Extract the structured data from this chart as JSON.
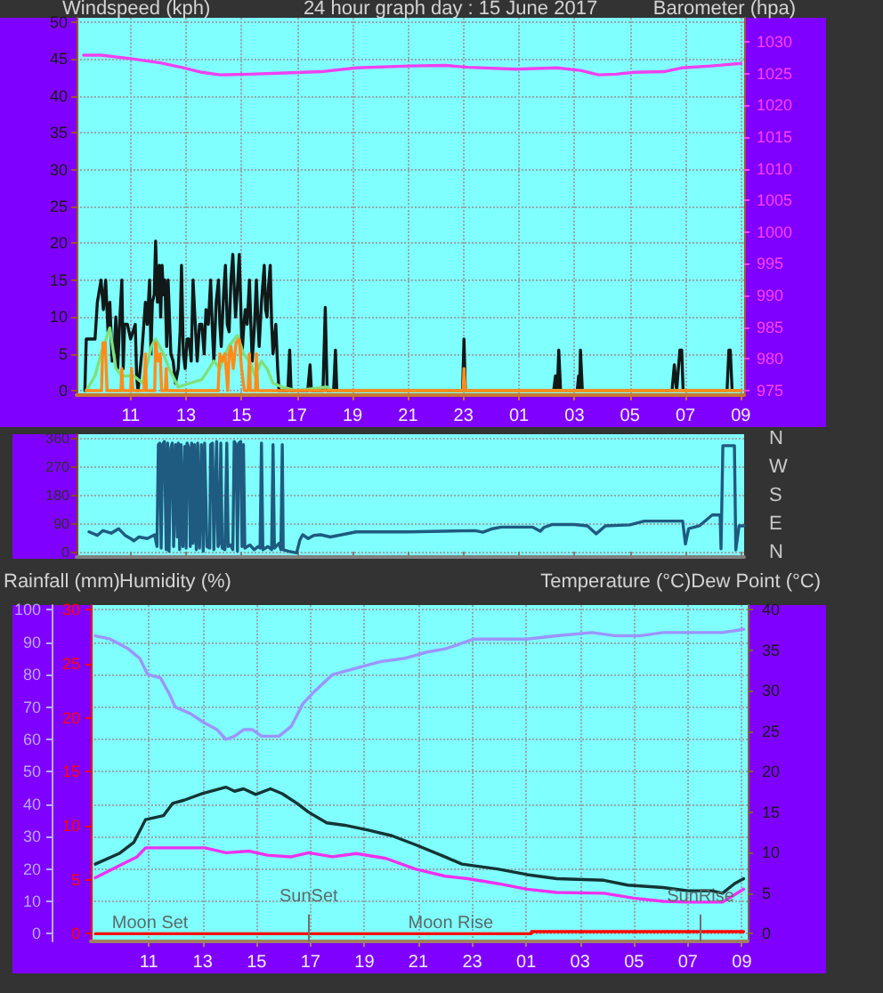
{
  "chart_data": [
    {
      "type": "line",
      "title": "24 hour graph day : 15 June 2017",
      "ylabel": "Windspeed (kph)",
      "y2label": "Barometer (hpa)",
      "xlim": [
        "2017-06-15T09:03",
        "2017-06-16T09:07"
      ],
      "xticks": [
        {
          "value": "2017-06-15T11:00",
          "label": "11"
        },
        {
          "value": "2017-06-15T13:00",
          "label": "13"
        },
        {
          "value": "2017-06-15T15:00",
          "label": "15"
        },
        {
          "value": "2017-06-15T17:00",
          "label": "17"
        },
        {
          "value": "2017-06-15T19:00",
          "label": "19"
        },
        {
          "value": "2017-06-15T21:00",
          "label": "21"
        },
        {
          "value": "2017-06-15T23:00",
          "label": "23"
        },
        {
          "value": "2017-06-16T01:00",
          "label": "01"
        },
        {
          "value": "2017-06-16T03:00",
          "label": "03"
        },
        {
          "value": "2017-06-16T05:00",
          "label": "05"
        },
        {
          "value": "2017-06-16T07:00",
          "label": "07"
        },
        {
          "value": "2017-06-16T09:00",
          "label": "09"
        }
      ],
      "ylim": [
        -0.6,
        50.6
      ],
      "yticks": [
        0,
        5,
        10,
        15,
        20,
        25,
        30,
        35,
        40,
        45,
        50
      ],
      "y2lim": [
        974.3,
        1033.8
      ],
      "y2ticks": [
        975,
        980,
        985,
        990,
        995,
        1000,
        1005,
        1010,
        1015,
        1020,
        1025,
        1030
      ],
      "grid": true,
      "series": [
        {
          "color": "#101818",
          "x": [
            "2017-06-15T09:21",
            "2017-06-15T09:24",
            "2017-06-15T09:43",
            "2017-06-15T09:48",
            "2017-06-15T09:56",
            "2017-06-15T10:01",
            "2017-06-15T10:06",
            "2017-06-15T10:11",
            "2017-06-15T10:15",
            "2017-06-15T10:20",
            "2017-06-15T10:24",
            "2017-06-15T10:28",
            "2017-06-15T10:32",
            "2017-06-15T10:36",
            "2017-06-15T10:41",
            "2017-06-15T10:44",
            "2017-06-15T10:47",
            "2017-06-15T10:53",
            "2017-06-15T11:00",
            "2017-06-15T11:10",
            "2017-06-15T11:13",
            "2017-06-15T11:16",
            "2017-06-15T11:24",
            "2017-06-15T11:32",
            "2017-06-15T11:36",
            "2017-06-15T11:41",
            "2017-06-15T11:44",
            "2017-06-15T11:47",
            "2017-06-15T11:51",
            "2017-06-15T11:54",
            "2017-06-15T11:58",
            "2017-06-15T12:02",
            "2017-06-15T12:05",
            "2017-06-15T12:08",
            "2017-06-15T12:11",
            "2017-06-15T12:14",
            "2017-06-15T12:18",
            "2017-06-15T12:21",
            "2017-06-15T12:27",
            "2017-06-15T12:32",
            "2017-06-15T12:37",
            "2017-06-15T12:43",
            "2017-06-15T12:47",
            "2017-06-15T12:50",
            "2017-06-15T12:54",
            "2017-06-15T12:58",
            "2017-06-15T13:02",
            "2017-06-15T13:06",
            "2017-06-15T13:11",
            "2017-06-15T13:15",
            "2017-06-15T13:19",
            "2017-06-15T13:24",
            "2017-06-15T13:29",
            "2017-06-15T13:34",
            "2017-06-15T13:39",
            "2017-06-15T13:43",
            "2017-06-15T13:48",
            "2017-06-15T13:53",
            "2017-06-15T13:57",
            "2017-06-15T14:00",
            "2017-06-15T14:05",
            "2017-06-15T14:10",
            "2017-06-15T14:13",
            "2017-06-15T14:16",
            "2017-06-15T14:21",
            "2017-06-15T14:25",
            "2017-06-15T14:29",
            "2017-06-15T14:33",
            "2017-06-15T14:37",
            "2017-06-15T14:41",
            "2017-06-15T14:44",
            "2017-06-15T14:47",
            "2017-06-15T14:52",
            "2017-06-15T14:55",
            "2017-06-15T14:58",
            "2017-06-15T15:01",
            "2017-06-15T15:05",
            "2017-06-15T15:08",
            "2017-06-15T15:12",
            "2017-06-15T15:17",
            "2017-06-15T15:20",
            "2017-06-15T15:23",
            "2017-06-15T15:28",
            "2017-06-15T15:32",
            "2017-06-15T15:35",
            "2017-06-15T15:38",
            "2017-06-15T15:43",
            "2017-06-15T15:49",
            "2017-06-15T15:52",
            "2017-06-15T15:55",
            "2017-06-15T15:58",
            "2017-06-15T16:02",
            "2017-06-15T16:05",
            "2017-06-15T16:08",
            "2017-06-15T16:11",
            "2017-06-15T16:14",
            "2017-06-15T16:18",
            "2017-06-15T16:21",
            "2017-06-15T16:40",
            "2017-06-15T16:44",
            "2017-06-15T16:47",
            "2017-06-15T17:23",
            "2017-06-15T17:28",
            "2017-06-15T17:31",
            "2017-06-15T17:56",
            "2017-06-15T18:01",
            "2017-06-15T18:05",
            "2017-06-15T18:19",
            "2017-06-15T18:23",
            "2017-06-15T18:26",
            "2017-06-15T22:58",
            "2017-06-15T23:01",
            "2017-06-15T23:04",
            "2017-06-16T02:15",
            "2017-06-16T02:19",
            "2017-06-16T02:23",
            "2017-06-16T02:26",
            "2017-06-16T02:30",
            "2017-06-16T03:06",
            "2017-06-16T03:09",
            "2017-06-16T03:11",
            "2017-06-16T03:13",
            "2017-06-16T03:17",
            "2017-06-16T06:31",
            "2017-06-16T06:36",
            "2017-06-16T06:41",
            "2017-06-16T06:48",
            "2017-06-16T06:52",
            "2017-06-16T06:55",
            "2017-06-16T08:30",
            "2017-06-16T08:34",
            "2017-06-16T08:37",
            "2017-06-16T08:41",
            "2017-06-16T09:00"
          ],
          "values": [
            0,
            7,
            7,
            12,
            15,
            11,
            15,
            8,
            12,
            4,
            5,
            10,
            3,
            9,
            15,
            3,
            9,
            9,
            7,
            9,
            2,
            0,
            5,
            12,
            9,
            15,
            5,
            12,
            13,
            20.3,
            12,
            17,
            10,
            17,
            13,
            15,
            6,
            15,
            5,
            4,
            1,
            3,
            8,
            17,
            5,
            3,
            7,
            7,
            4,
            15,
            10,
            4,
            9,
            9,
            5,
            11,
            9,
            15,
            8,
            4,
            12,
            15,
            9,
            6,
            13,
            17,
            9,
            8,
            15,
            18.5,
            14,
            10,
            15,
            18.5,
            12,
            5,
            9,
            11,
            9,
            15,
            9,
            4,
            9,
            15,
            10,
            6,
            12,
            17,
            11,
            10,
            14,
            17,
            9,
            5,
            7,
            9,
            3,
            0,
            0,
            5.5,
            0,
            0,
            3.5,
            0,
            0,
            11.3,
            0,
            0,
            5.5,
            0,
            0,
            7,
            0,
            0,
            2,
            0,
            5.5,
            0,
            0,
            2,
            0,
            5.5,
            0,
            0,
            3.5,
            0,
            5.5,
            5.5,
            0,
            0,
            5.5,
            5.5,
            0,
            0
          ]
        },
        {
          "color": "#7ee07e",
          "x": [
            "2017-06-15T09:24",
            "2017-06-15T09:43",
            "2017-06-15T09:56",
            "2017-06-15T10:15",
            "2017-06-15T10:28",
            "2017-06-15T10:41",
            "2017-06-15T11:07",
            "2017-06-15T11:26",
            "2017-06-15T11:45",
            "2017-06-15T11:54",
            "2017-06-15T12:11",
            "2017-06-15T12:23",
            "2017-06-15T12:43",
            "2017-06-15T13:08",
            "2017-06-15T13:34",
            "2017-06-15T14:00",
            "2017-06-15T14:13",
            "2017-06-15T14:32",
            "2017-06-15T14:51",
            "2017-06-15T15:04",
            "2017-06-15T15:17",
            "2017-06-15T15:29",
            "2017-06-15T15:43",
            "2017-06-15T15:55",
            "2017-06-15T16:08",
            "2017-06-15T16:28",
            "2017-06-15T16:59",
            "2017-06-15T18:04",
            "2017-06-15T18:16",
            "2017-06-16T09:00"
          ],
          "values": [
            0,
            2,
            5,
            8.5,
            3,
            2,
            2,
            1,
            6,
            7,
            5,
            3,
            0.5,
            1,
            1.5,
            4,
            3,
            6,
            7.5,
            5,
            4,
            2,
            4,
            3,
            1,
            0.5,
            0,
            0.5,
            0,
            0
          ]
        },
        {
          "color": "#ff8c1a",
          "x": [
            "2017-06-15T09:24",
            "2017-06-15T09:57",
            "2017-06-15T10:00",
            "2017-06-15T10:02",
            "2017-06-15T10:05",
            "2017-06-15T10:09",
            "2017-06-15T10:39",
            "2017-06-15T10:41",
            "2017-06-15T10:43",
            "2017-06-15T11:00",
            "2017-06-15T11:02",
            "2017-06-15T11:05",
            "2017-06-15T11:29",
            "2017-06-15T11:32",
            "2017-06-15T11:34",
            "2017-06-15T11:52",
            "2017-06-15T11:54",
            "2017-06-15T11:59",
            "2017-06-15T12:04",
            "2017-06-15T12:07",
            "2017-06-15T12:15",
            "2017-06-15T12:17",
            "2017-06-15T12:19",
            "2017-06-15T14:09",
            "2017-06-15T14:13",
            "2017-06-15T14:18",
            "2017-06-15T14:24",
            "2017-06-15T14:30",
            "2017-06-15T14:33",
            "2017-06-15T14:37",
            "2017-06-15T14:42",
            "2017-06-15T14:48",
            "2017-06-15T14:55",
            "2017-06-15T15:00",
            "2017-06-15T15:06",
            "2017-06-15T15:14",
            "2017-06-15T15:17",
            "2017-06-15T15:19",
            "2017-06-15T15:30",
            "2017-06-15T15:32",
            "2017-06-15T15:35",
            "2017-06-15T22:59",
            "2017-06-15T23:01",
            "2017-06-15T23:04",
            "2017-06-16T09:00"
          ],
          "values": [
            0,
            0,
            6.5,
            5,
            6.5,
            0,
            0,
            3,
            0,
            0,
            3,
            0,
            0,
            5,
            0,
            0,
            6.5,
            4,
            5,
            0,
            0,
            3,
            0,
            0,
            5,
            4,
            5,
            0,
            5,
            6,
            3,
            6.5,
            7,
            3,
            0,
            0,
            5,
            0,
            0,
            5,
            0,
            0,
            3,
            0,
            0
          ]
        },
        {
          "color": "#f040f0",
          "axis": "y2",
          "x": [
            "2017-06-15T09:18",
            "2017-06-15T09:56",
            "2017-06-15T11:07",
            "2017-06-15T12:04",
            "2017-06-15T12:56",
            "2017-06-15T13:34",
            "2017-06-15T14:13",
            "2017-06-15T15:17",
            "2017-06-15T16:34",
            "2017-06-15T17:51",
            "2017-06-15T19:08",
            "2017-06-15T21:04",
            "2017-06-15T22:20",
            "2017-06-15T23:10",
            "2017-06-16T00:52",
            "2017-06-16T02:22",
            "2017-06-16T03:13",
            "2017-06-16T03:52",
            "2017-06-16T04:30",
            "2017-06-16T05:09",
            "2017-06-16T06:13",
            "2017-06-16T06:52",
            "2017-06-16T07:56",
            "2017-06-16T09:00"
          ],
          "values": [
            1027.9,
            1027.9,
            1027.3,
            1026.7,
            1025.9,
            1025.2,
            1024.8,
            1024.9,
            1025.1,
            1025.3,
            1025.9,
            1026.2,
            1026.3,
            1026.0,
            1025.7,
            1025.9,
            1025.5,
            1024.8,
            1024.9,
            1025.2,
            1025.3,
            1025.9,
            1026.2,
            1026.6
          ]
        }
      ]
    },
    {
      "type": "line",
      "xlim": [
        "2017-06-15T09:03",
        "2017-06-16T09:07"
      ],
      "xticks": [
        {
          "value": "2017-06-15T11:00",
          "label": null
        },
        {
          "value": "2017-06-15T13:00",
          "label": null
        },
        {
          "value": "2017-06-15T15:00",
          "label": null
        },
        {
          "value": "2017-06-15T17:00",
          "label": null
        },
        {
          "value": "2017-06-15T19:00",
          "label": null
        },
        {
          "value": "2017-06-15T21:00",
          "label": null
        },
        {
          "value": "2017-06-15T23:00",
          "label": null
        },
        {
          "value": "2017-06-16T01:00",
          "label": null
        },
        {
          "value": "2017-06-16T03:00",
          "label": null
        },
        {
          "value": "2017-06-16T05:00",
          "label": null
        },
        {
          "value": "2017-06-16T07:00",
          "label": null
        },
        {
          "value": "2017-06-16T09:00",
          "label": null
        }
      ],
      "ylim": [
        -13,
        373
      ],
      "yticks": [
        0,
        90,
        180,
        270,
        360
      ],
      "annotations": [
        "N",
        "W",
        "S",
        "E",
        "N"
      ],
      "grid": "y",
      "tick_labels": "y",
      "series": [
        {
          "color": "#1f5a80",
          "x": [
            "2017-06-15T09:30",
            "2017-06-15T09:48",
            "2017-06-15T10:00",
            "2017-06-15T10:18",
            "2017-06-15T10:34",
            "2017-06-15T10:48",
            "2017-06-15T11:00",
            "2017-06-15T11:07",
            "2017-06-15T11:18",
            "2017-06-15T11:36",
            "2017-06-15T11:52",
            "2017-06-15T11:57",
            "2017-06-15T12:00",
            "2017-06-15T12:03",
            "2017-06-15T12:06",
            "2017-06-15T12:09",
            "2017-06-15T12:13",
            "2017-06-15T12:17",
            "2017-06-15T12:20",
            "2017-06-15T12:23",
            "2017-06-15T12:27",
            "2017-06-15T12:30",
            "2017-06-15T12:33",
            "2017-06-15T12:37",
            "2017-06-15T12:41",
            "2017-06-15T12:43",
            "2017-06-15T12:46",
            "2017-06-15T12:49",
            "2017-06-15T12:53",
            "2017-06-15T12:57",
            "2017-06-15T13:00",
            "2017-06-15T13:02",
            "2017-06-15T13:06",
            "2017-06-15T13:09",
            "2017-06-15T13:12",
            "2017-06-15T13:15",
            "2017-06-15T13:18",
            "2017-06-15T13:22",
            "2017-06-15T13:25",
            "2017-06-15T13:29",
            "2017-06-15T13:33",
            "2017-06-15T13:37",
            "2017-06-15T13:40",
            "2017-06-15T13:45",
            "2017-06-15T13:51",
            "2017-06-15T13:53",
            "2017-06-15T13:57",
            "2017-06-15T14:00",
            "2017-06-15T14:06",
            "2017-06-15T14:09",
            "2017-06-15T14:12",
            "2017-06-15T14:15",
            "2017-06-15T14:18",
            "2017-06-15T14:24",
            "2017-06-15T14:28",
            "2017-06-15T14:31",
            "2017-06-15T14:36",
            "2017-06-15T14:41",
            "2017-06-15T14:44",
            "2017-06-15T14:48",
            "2017-06-15T14:51",
            "2017-06-15T14:54",
            "2017-06-15T14:58",
            "2017-06-15T15:01",
            "2017-06-15T15:04",
            "2017-06-15T15:07",
            "2017-06-15T15:18",
            "2017-06-15T15:27",
            "2017-06-15T15:36",
            "2017-06-15T15:40",
            "2017-06-15T15:43",
            "2017-06-15T15:46",
            "2017-06-15T15:57",
            "2017-06-15T16:05",
            "2017-06-15T16:08",
            "2017-06-15T16:11",
            "2017-06-15T16:21",
            "2017-06-15T16:25",
            "2017-06-15T16:28",
            "2017-06-15T16:30",
            "2017-06-15T16:42",
            "2017-06-15T16:59",
            "2017-06-15T17:06",
            "2017-06-15T17:12",
            "2017-06-15T17:24",
            "2017-06-15T17:36",
            "2017-06-15T17:51",
            "2017-06-15T18:12",
            "2017-06-15T19:08",
            "2017-06-15T21:00",
            "2017-06-15T23:25",
            "2017-06-15T23:42",
            "2017-06-16T00:00",
            "2017-06-16T00:22",
            "2017-06-16T01:30",
            "2017-06-16T01:46",
            "2017-06-16T01:54",
            "2017-06-16T02:11",
            "2017-06-16T03:00",
            "2017-06-16T03:28",
            "2017-06-16T03:47",
            "2017-06-16T04:07",
            "2017-06-16T05:00",
            "2017-06-16T05:31",
            "2017-06-16T06:54",
            "2017-06-16T07:00",
            "2017-06-16T07:07",
            "2017-06-16T07:30",
            "2017-06-16T07:58",
            "2017-06-16T08:15",
            "2017-06-16T08:17",
            "2017-06-16T08:21",
            "2017-06-16T08:46",
            "2017-06-16T08:49",
            "2017-06-16T08:56",
            "2017-06-16T09:07"
          ],
          "values": [
            66,
            55,
            70,
            62,
            76,
            55,
            45,
            38,
            50,
            45,
            57,
            20,
            340,
            345,
            15,
            340,
            350,
            10,
            345,
            5,
            330,
            345,
            20,
            340,
            50,
            345,
            10,
            340,
            20,
            335,
            15,
            345,
            330,
            20,
            345,
            30,
            340,
            10,
            345,
            15,
            340,
            5,
            345,
            20,
            15,
            340,
            345,
            10,
            350,
            20,
            30,
            345,
            15,
            10,
            345,
            20,
            25,
            10,
            350,
            340,
            5,
            345,
            350,
            20,
            340,
            15,
            25,
            10,
            20,
            15,
            345,
            10,
            20,
            10,
            340,
            15,
            30,
            10,
            340,
            10,
            5,
            0,
            40,
            57,
            45,
            55,
            57,
            50,
            66,
            66,
            70,
            65,
            75,
            81,
            81,
            68,
            80,
            89,
            89,
            85,
            60,
            85,
            88,
            100,
            100,
            28,
            76,
            85,
            119,
            119,
            13,
            337,
            337,
            9,
            85,
            85
          ]
        }
      ]
    },
    {
      "type": "line",
      "ylabel": "Humidity (%)",
      "y3label": "Rainfall (mm)",
      "y2label": "Temperature (°C)Dew Point (°C)",
      "xlim": [
        "2017-06-15T08:51",
        "2017-06-16T09:13"
      ],
      "xticks": [
        {
          "value": "2017-06-15T11:00",
          "label": "11"
        },
        {
          "value": "2017-06-15T13:00",
          "label": "13"
        },
        {
          "value": "2017-06-15T15:00",
          "label": "15"
        },
        {
          "value": "2017-06-15T17:00",
          "label": "17"
        },
        {
          "value": "2017-06-15T19:00",
          "label": "19"
        },
        {
          "value": "2017-06-15T21:00",
          "label": "21"
        },
        {
          "value": "2017-06-15T23:00",
          "label": "23"
        },
        {
          "value": "2017-06-16T01:00",
          "label": "01"
        },
        {
          "value": "2017-06-16T03:00",
          "label": "03"
        },
        {
          "value": "2017-06-16T05:00",
          "label": "05"
        },
        {
          "value": "2017-06-16T07:00",
          "label": "07"
        },
        {
          "value": "2017-06-16T09:00",
          "label": "09"
        }
      ],
      "ylim": [
        -2.4,
        101.5
      ],
      "yticks": [
        0,
        10,
        20,
        30,
        40,
        50,
        60,
        70,
        80,
        90,
        100
      ],
      "y2lim": [
        -0.95,
        40.6
      ],
      "y2ticks": [
        0,
        5,
        10,
        15,
        20,
        25,
        30,
        35,
        40
      ],
      "y3lim": [
        -0.71,
        30.44
      ],
      "y3ticks": [
        0,
        5,
        10,
        15,
        20,
        25,
        30
      ],
      "grid": true,
      "ref_lines": [
        {
          "axis": "x",
          "value": "2017-06-15T16:56",
          "label": "SunSet",
          "color": "#707070"
        },
        {
          "axis": "x",
          "value": "2017-06-16T07:28",
          "label": "SunRise",
          "color": "#707070"
        }
      ],
      "annotations": [
        {
          "text": "Moon Set",
          "x": "2017-06-15T11:03",
          "y": 3
        },
        {
          "text": "Moon Rise",
          "x": "2017-06-15T22:12",
          "y": 3
        }
      ],
      "series": [
        {
          "color": "#9c94ff",
          "x": [
            "2017-06-15T09:01",
            "2017-06-15T09:34",
            "2017-06-15T10:14",
            "2017-06-15T10:40",
            "2017-06-15T10:58",
            "2017-06-15T11:26",
            "2017-06-15T11:46",
            "2017-06-15T11:59",
            "2017-06-15T12:32",
            "2017-06-15T13:05",
            "2017-06-15T13:32",
            "2017-06-15T13:52",
            "2017-06-15T14:11",
            "2017-06-15T14:31",
            "2017-06-15T14:51",
            "2017-06-15T15:11",
            "2017-06-15T15:50",
            "2017-06-15T16:17",
            "2017-06-15T16:43",
            "2017-06-15T17:10",
            "2017-06-15T17:49",
            "2017-06-15T18:42",
            "2017-06-15T19:35",
            "2017-06-15T20:28",
            "2017-06-15T21:20",
            "2017-06-15T22:00",
            "2017-06-15T22:23",
            "2017-06-15T23:03",
            "2017-06-15T23:43",
            "2017-06-16T01:02",
            "2017-06-16T02:08",
            "2017-06-16T03:27",
            "2017-06-16T04:20",
            "2017-06-16T05:12",
            "2017-06-16T06:05",
            "2017-06-16T07:01",
            "2017-06-16T08:17",
            "2017-06-16T09:04"
          ],
          "values": [
            92,
            91,
            88,
            85,
            80,
            79,
            74,
            70,
            68,
            65,
            63,
            60,
            61,
            63,
            63,
            61,
            61,
            64,
            71,
            75,
            80,
            82,
            84,
            85,
            87,
            88,
            89,
            91,
            91,
            91,
            92,
            93,
            92,
            92,
            93,
            93,
            93,
            94
          ]
        },
        {
          "color": "#143434",
          "axis": "y2",
          "x": [
            "2017-06-15T09:01",
            "2017-06-15T09:54",
            "2017-06-15T10:27",
            "2017-06-15T10:53",
            "2017-06-15T11:33",
            "2017-06-15T11:53",
            "2017-06-15T12:19",
            "2017-06-15T12:59",
            "2017-06-15T13:52",
            "2017-06-15T14:11",
            "2017-06-15T14:31",
            "2017-06-15T14:58",
            "2017-06-15T15:31",
            "2017-06-15T15:57",
            "2017-06-15T16:30",
            "2017-06-15T16:56",
            "2017-06-15T17:36",
            "2017-06-15T18:16",
            "2017-06-15T19:08",
            "2017-06-15T20:01",
            "2017-06-15T20:53",
            "2017-06-15T21:59",
            "2017-06-15T22:37",
            "2017-06-15T23:56",
            "2017-06-16T01:02",
            "2017-06-16T02:08",
            "2017-06-16T03:53",
            "2017-06-16T04:46",
            "2017-06-16T06:05",
            "2017-06-16T07:01",
            "2017-06-16T07:53",
            "2017-06-16T08:17",
            "2017-06-16T08:44",
            "2017-06-16T09:04"
          ],
          "values": [
            8.6,
            9.9,
            11.3,
            14.1,
            14.6,
            16.1,
            16.5,
            17.3,
            18.1,
            17.6,
            17.9,
            17.2,
            17.9,
            17.3,
            16.1,
            15,
            13.7,
            13.4,
            12.8,
            12.1,
            11,
            9.5,
            8.6,
            8,
            7.3,
            6.8,
            6.6,
            6,
            5.7,
            5.3,
            5.3,
            5,
            6.2,
            6.8
          ]
        },
        {
          "color": "#ee30ee",
          "axis": "y2",
          "x": [
            "2017-06-15T09:01",
            "2017-06-15T09:54",
            "2017-06-15T10:34",
            "2017-06-15T10:53",
            "2017-06-15T12:06",
            "2017-06-15T13:05",
            "2017-06-15T13:52",
            "2017-06-15T14:44",
            "2017-06-15T15:24",
            "2017-06-15T16:17",
            "2017-06-15T16:56",
            "2017-06-15T17:49",
            "2017-06-15T18:42",
            "2017-06-15T19:48",
            "2017-06-15T20:53",
            "2017-06-15T22:00",
            "2017-06-15T22:50",
            "2017-06-15T23:56",
            "2017-06-16T01:02",
            "2017-06-16T02:08",
            "2017-06-16T03:53",
            "2017-06-16T04:59",
            "2017-06-16T06:05",
            "2017-06-16T07:01",
            "2017-06-16T08:17",
            "2017-06-16T09:04"
          ],
          "values": [
            6.9,
            8.4,
            9.5,
            10.6,
            10.6,
            10.6,
            10,
            10.2,
            9.7,
            9.5,
            10,
            9.5,
            9.9,
            9.3,
            8,
            7.1,
            6.8,
            6.2,
            5.5,
            5.1,
            5,
            4.4,
            4,
            3.9,
            3.9,
            5.5
          ]
        },
        {
          "color": "#ff0000",
          "axis": "y3",
          "x": [
            "2017-06-15T09:01",
            "2017-06-16T01:11",
            "2017-06-16T01:12",
            "2017-06-16T09:04"
          ],
          "values": [
            0,
            0,
            0.2,
            0.2
          ]
        }
      ]
    }
  ]
}
